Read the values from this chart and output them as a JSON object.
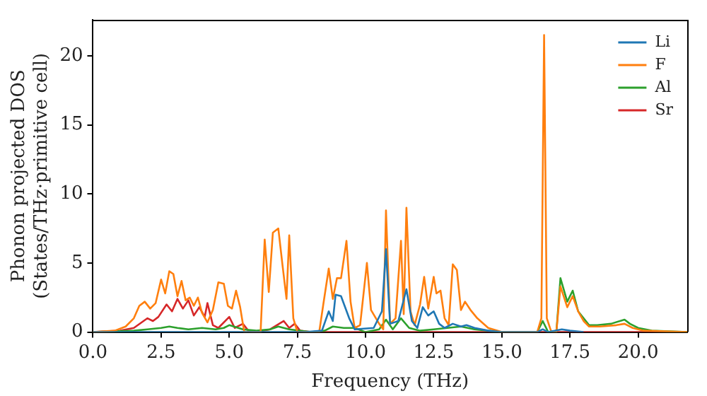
{
  "chart_data": {
    "type": "line",
    "xlabel": "Frequency (THz)",
    "ylabel": "Phonon projected DOS\n(States/THz·primitive cell)",
    "xlim": [
      0,
      21.8
    ],
    "ylim": [
      0,
      22.6
    ],
    "xticks": [
      {
        "value": 0,
        "label": "0.0"
      },
      {
        "value": 2.5,
        "label": "2.5"
      },
      {
        "value": 5,
        "label": "5.0"
      },
      {
        "value": 7.5,
        "label": "7.5"
      },
      {
        "value": 10,
        "label": "10.0"
      },
      {
        "value": 12.5,
        "label": "12.5"
      },
      {
        "value": 15,
        "label": "15.0"
      },
      {
        "value": 17.5,
        "label": "17.5"
      },
      {
        "value": 20,
        "label": "20.0"
      }
    ],
    "yticks": [
      0,
      5,
      10,
      15,
      20
    ],
    "grid": false,
    "legend": "top right",
    "marker": "none",
    "line_style": "solid",
    "series": [
      {
        "name": "Li",
        "color": "#1f77b4",
        "x": [
          0,
          7.8,
          8.4,
          8.65,
          8.8,
          8.9,
          9.1,
          9.4,
          9.6,
          10.3,
          10.6,
          10.75,
          10.9,
          11.2,
          11.5,
          11.7,
          11.9,
          12.1,
          12.3,
          12.5,
          12.7,
          12.9,
          13.2,
          13.5,
          13.7,
          14.0,
          14.5,
          15.0,
          16.3,
          16.5,
          16.7,
          17.2,
          17.5,
          18
        ],
        "values": [
          0,
          0,
          0.1,
          1.5,
          0.8,
          2.7,
          2.6,
          1.0,
          0.2,
          0.3,
          1.5,
          6.0,
          0.6,
          0.8,
          3.1,
          0.8,
          0.3,
          1.8,
          1.2,
          1.5,
          0.6,
          0.3,
          0.6,
          0.4,
          0.5,
          0.3,
          0.1,
          0,
          0,
          0.2,
          0,
          0.2,
          0.1,
          0
        ]
      },
      {
        "name": "F",
        "color": "#ff7f0e",
        "x": [
          0,
          0.8,
          1.2,
          1.5,
          1.7,
          1.9,
          2.1,
          2.3,
          2.5,
          2.65,
          2.8,
          2.95,
          3.1,
          3.25,
          3.4,
          3.55,
          3.7,
          3.85,
          4.0,
          4.2,
          4.4,
          4.6,
          4.8,
          4.95,
          5.1,
          5.25,
          5.4,
          5.55,
          5.75,
          5.9,
          6.15,
          6.3,
          6.45,
          6.6,
          6.8,
          6.95,
          7.1,
          7.2,
          7.35,
          7.5,
          7.6,
          7.8,
          8.3,
          8.45,
          8.65,
          8.8,
          8.95,
          9.1,
          9.3,
          9.45,
          9.6,
          9.8,
          10.05,
          10.2,
          10.5,
          10.65,
          10.75,
          10.9,
          11.1,
          11.3,
          11.4,
          11.5,
          11.65,
          11.8,
          12.0,
          12.15,
          12.3,
          12.5,
          12.6,
          12.75,
          12.9,
          13.05,
          13.2,
          13.35,
          13.5,
          13.65,
          13.85,
          14.1,
          14.5,
          15.0,
          15.4,
          16.3,
          16.45,
          16.55,
          16.65,
          16.8,
          17.0,
          17.15,
          17.4,
          17.6,
          17.8,
          18.0,
          18.2,
          18.6,
          19.2,
          19.5,
          19.8,
          20.2,
          21.8
        ],
        "values": [
          0,
          0.1,
          0.4,
          1.0,
          1.9,
          2.2,
          1.7,
          2.1,
          3.8,
          2.8,
          4.4,
          4.2,
          2.6,
          3.7,
          2.3,
          2.5,
          1.9,
          2.5,
          1.4,
          0.7,
          1.6,
          3.6,
          3.5,
          1.9,
          1.7,
          3.0,
          1.8,
          0,
          0,
          0,
          0,
          6.7,
          2.9,
          7.2,
          7.5,
          4.9,
          2.4,
          7.0,
          1.0,
          0,
          0,
          0,
          0,
          2.0,
          4.6,
          2.4,
          3.9,
          3.9,
          6.6,
          2.2,
          0.3,
          0.5,
          5.0,
          1.6,
          0.6,
          0.2,
          8.8,
          0.6,
          1.0,
          6.6,
          1.3,
          9.0,
          1.5,
          0.5,
          2.0,
          4.0,
          1.7,
          4.0,
          2.8,
          3.0,
          1.0,
          0.5,
          4.9,
          4.5,
          1.6,
          2.2,
          1.6,
          1.0,
          0.3,
          0,
          0,
          0,
          1.0,
          21.5,
          1.0,
          0.1,
          0,
          3.3,
          1.8,
          2.6,
          1.5,
          0.8,
          0.4,
          0.4,
          0.5,
          0.6,
          0.3,
          0.1,
          0
        ]
      },
      {
        "name": "Al",
        "color": "#2ca02c",
        "x": [
          0,
          1.5,
          2.0,
          2.5,
          2.8,
          3.1,
          3.5,
          4.0,
          4.5,
          4.8,
          5.0,
          5.5,
          6.0,
          6.5,
          6.8,
          7.2,
          8.0,
          8.5,
          8.8,
          9.2,
          9.6,
          10.0,
          10.5,
          10.75,
          11.0,
          11.3,
          11.6,
          12.0,
          12.5,
          13.0,
          13.5,
          14.0,
          14.5,
          15.0,
          16.3,
          16.5,
          16.7,
          17.0,
          17.15,
          17.4,
          17.6,
          17.8,
          18.0,
          18.2,
          18.5,
          19.0,
          19.5,
          19.7,
          20.0,
          20.5,
          21.8
        ],
        "values": [
          0,
          0.1,
          0.2,
          0.3,
          0.4,
          0.3,
          0.2,
          0.3,
          0.2,
          0.3,
          0.5,
          0.2,
          0.1,
          0.2,
          0.4,
          0.2,
          0,
          0.1,
          0.4,
          0.3,
          0.3,
          0,
          0.2,
          0.9,
          0.2,
          1.0,
          0.3,
          0.1,
          0.2,
          0.3,
          0.4,
          0.2,
          0.1,
          0,
          0,
          0.8,
          0,
          0,
          3.9,
          2.2,
          3.0,
          1.5,
          1.0,
          0.5,
          0.5,
          0.6,
          0.9,
          0.6,
          0.3,
          0.1,
          0
        ]
      },
      {
        "name": "Sr",
        "color": "#d62728",
        "x": [
          0,
          1.0,
          1.5,
          2.0,
          2.2,
          2.4,
          2.7,
          2.9,
          3.1,
          3.3,
          3.5,
          3.7,
          3.9,
          4.1,
          4.2,
          4.4,
          4.6,
          5.0,
          5.2,
          5.5,
          5.7,
          6.0,
          6.5,
          7.0,
          7.2,
          7.4,
          7.6,
          8.0,
          21.8
        ],
        "values": [
          0,
          0.1,
          0.3,
          1.0,
          0.8,
          1.1,
          2.0,
          1.5,
          2.4,
          1.7,
          2.3,
          1.2,
          1.8,
          1.1,
          2.1,
          0.5,
          0.3,
          1.1,
          0.3,
          0.6,
          0.1,
          0,
          0.2,
          0.8,
          0.3,
          0.6,
          0.1,
          0,
          0
        ]
      }
    ]
  }
}
